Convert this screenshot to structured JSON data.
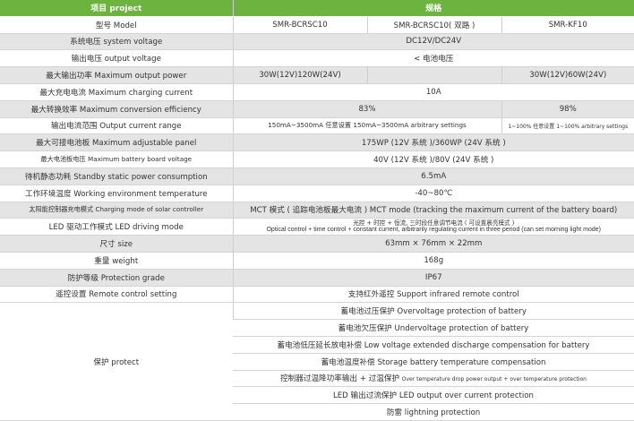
{
  "header": {
    "project": "项目 project",
    "spec": "规格",
    "color": "#6cb33f"
  },
  "rows": {
    "model": {
      "label": "型号 Model",
      "v1": "SMR-BCRSC10",
      "v2": "SMR-BCRSC10( 双路 )",
      "v3": "SMR-KF10"
    },
    "system_voltage": {
      "label": "系统电压 system voltage",
      "value": "DC12V/DC24V"
    },
    "output_voltage": {
      "label": "输出电压 output voltage",
      "value": "< 电池电压"
    },
    "max_output_power": {
      "label": "最大输出功率 Maximum output power",
      "v1": "30W(12V)120W(24V)",
      "v2": "",
      "v3": "30W(12V)60W(24V)"
    },
    "max_charging_current": {
      "label": "最大充电电流 Maximum charging current",
      "value": "10A"
    },
    "max_efficiency": {
      "label": "最大转换效率 Maximum conversion efficiency",
      "v1": "83%",
      "v2": "98%"
    },
    "output_current_range": {
      "label": "输出电流范围 Output current range",
      "v1": "150mA~3500mA 任意设置 150mA~3500mA arbitrary settings",
      "v2": "1~100% 任意设置 1~100% arbitrary settings"
    },
    "max_panel": {
      "label": "最大可接电池板 Maximum adjustable panel",
      "value": "175WP (12V 系统 )/360WP (24V 系统 )"
    },
    "max_panel_voltage": {
      "label": "最大电池板电压 Maximum battery board voltage",
      "value": "40V (12V 系统 )/80V (24V 系统 )"
    },
    "standby": {
      "label": "待机静态功耗 Standby static power consumption",
      "value": "6.5mA"
    },
    "temperature": {
      "label": "工作环境温度 Working environment temperature",
      "value": "-40~80℃"
    },
    "charging_mode": {
      "label": "太阳能控制器充电模式 Charging mode of solar controller",
      "value": "MCT 模式 ( 追踪电池板最大电流 )  MCT mode (tracking the maximum current of the battery board)"
    },
    "led_mode": {
      "label": "LED 驱动工作模式 LED driving mode",
      "value_cn": "光控 + 时控 + 恒流, 三时段任意调节电流 ( 可设置晨亮模式 )",
      "value_en": "Optical control + time control + constant current, arbitrarily regulating current in three period (can set morning light mode)"
    },
    "size": {
      "label": "尺寸 size",
      "value": "63mm × 76mm × 22mm"
    },
    "weight": {
      "label": "重量 weight",
      "value": "168g"
    },
    "protection_grade": {
      "label": "防护等级 Protection grade",
      "value": "IP67"
    },
    "remote": {
      "label": "遥控设置 Remote control setting",
      "value": "支持红外遥控  Support infrared remote control"
    }
  },
  "protect": {
    "label": "保护 protect",
    "items": [
      "蓄电池过压保护  Overvoltage protection of battery",
      "蓄电池欠压保护 Undervoltage protection of battery",
      "蓄电池低压延长放电补偿  Low voltage extended discharge compensation for battery",
      "蓄电池温度补偿  Storage battery temperature compensation",
      "控制器过温降功率输出 + 过温保护",
      "LED 输出过流保护  LED output over current protection",
      "防雷 lightning protection"
    ],
    "item5_en": "Over temperature drop power output + over temperature protection"
  }
}
